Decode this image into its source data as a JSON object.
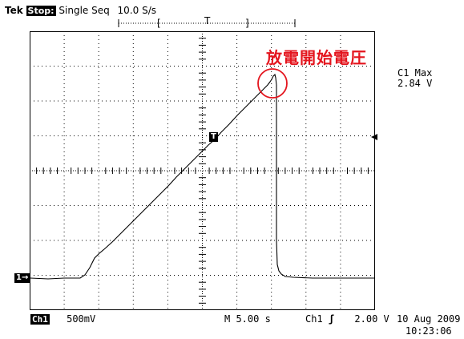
{
  "status_bar": {
    "brand": "Tek",
    "acq_state": "Stop:",
    "mode": "Single Seq",
    "sample_rate": "10.0 S/s"
  },
  "annotation": {
    "text": "放電開始電圧",
    "color": "#e4151e"
  },
  "measurement": {
    "label": "C1 Max",
    "value": "2.84 V"
  },
  "markers": {
    "trigger_position": "T",
    "trigger_point": "T",
    "channel_ref": "1→"
  },
  "bottom_bar": {
    "channel": "Ch1",
    "vertical_scale": "500mV",
    "timebase": "M  5.00 s",
    "trigger_source": "Ch1",
    "trigger_slope": "ʃ",
    "trigger_level": "2.00 V"
  },
  "timestamp": {
    "date": "10 Aug 2009",
    "time": "10:23:06"
  },
  "waveform": {
    "description": "ramp to breakdown then drop",
    "color": "#000000",
    "highlight_color": "#e4151e"
  }
}
